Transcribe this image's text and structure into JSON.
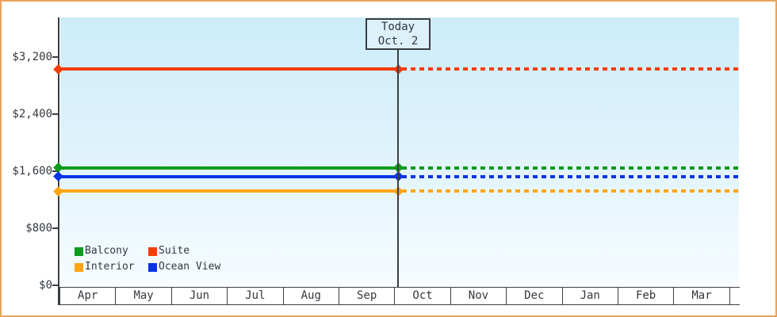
{
  "page": {
    "border_color": "#e9a45c",
    "background": "#ffffff",
    "text_color": "#33383f",
    "axis_color": "#3a3e44"
  },
  "chart_data": {
    "type": "line",
    "title": "",
    "xlabel": "",
    "ylabel": "",
    "x_categories": [
      "Apr",
      "May",
      "Jun",
      "Jul",
      "Aug",
      "Sep",
      "Oct",
      "Nov",
      "Dec",
      "Jan",
      "Feb",
      "Mar"
    ],
    "y_ticks": [
      {
        "label": "$0",
        "value": 0
      },
      {
        "label": "$800",
        "value": 800
      },
      {
        "label": "$1,600",
        "value": 1600
      },
      {
        "label": "$2,400",
        "value": 2400
      },
      {
        "label": "$3,200",
        "value": 3200
      }
    ],
    "ylim": [
      0,
      3750
    ],
    "grid": false,
    "plot_background": [
      "#cdecfa",
      "#f7fcff"
    ],
    "series": [
      {
        "name": "Balcony",
        "color": "#0c9b1e",
        "value": 1650,
        "style": "solid then dotted after today"
      },
      {
        "name": "Suite",
        "color": "#f53c0a",
        "value": 3030,
        "style": "solid then dotted after today"
      },
      {
        "name": "Interior",
        "color": "#ffa514",
        "value": 1320,
        "style": "solid then dotted after today"
      },
      {
        "name": "Ocean View",
        "color": "#0a33e8",
        "value": 1525,
        "style": "solid then dotted after today"
      }
    ],
    "annotation": {
      "line1": "Today",
      "line2": "Oct. 2",
      "x_between": [
        "Sep",
        "Oct"
      ]
    },
    "legend_position": "bottom-left inside plot",
    "legend_order": [
      "Balcony",
      "Suite",
      "Interior",
      "Ocean View"
    ]
  }
}
